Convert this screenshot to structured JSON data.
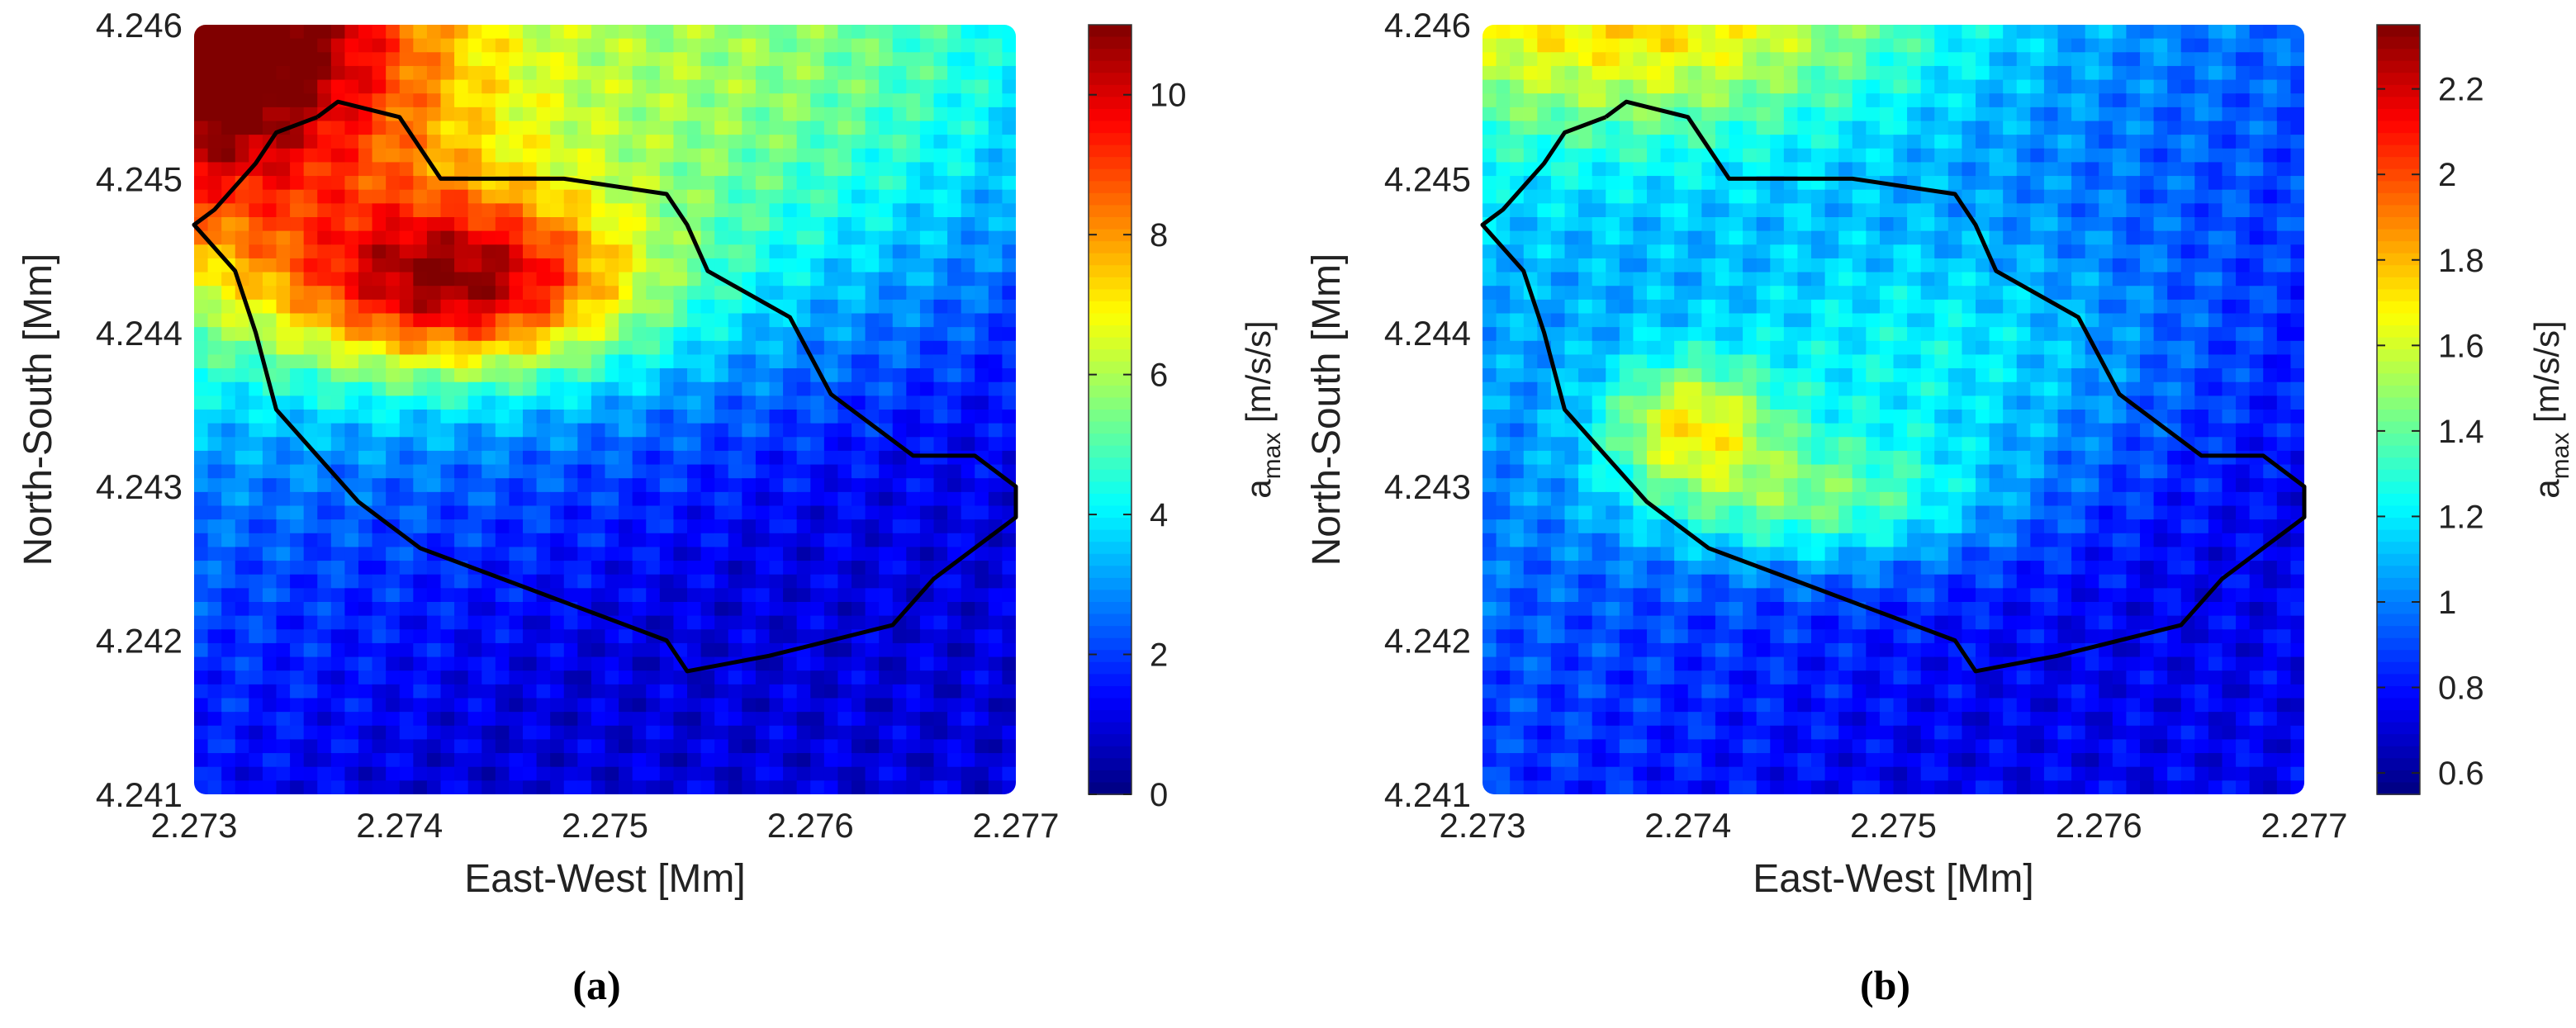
{
  "chart_data": [
    {
      "type": "heatmap",
      "panel_label": "(a)",
      "xlabel": "East-West [Mm]",
      "ylabel": "North-South [Mm]",
      "colorbar_label": "a",
      "colorbar_label_sub": "max",
      "colorbar_units": "[m/s/s]",
      "xlim": [
        2.273,
        2.277
      ],
      "ylim": [
        4.241,
        4.246
      ],
      "xticks": [
        "2.273",
        "2.274",
        "2.275",
        "2.276",
        "2.277"
      ],
      "yticks": [
        "4.241",
        "4.242",
        "4.243",
        "4.244",
        "4.245",
        "4.246"
      ],
      "colorbar_range": [
        0,
        11
      ],
      "colorbar_ticks": [
        "0",
        "2",
        "4",
        "6",
        "8",
        "10"
      ],
      "colormap": "jet",
      "field": {
        "background_level": 1.6,
        "hotspots": [
          {
            "x": 2.273,
            "y": 4.246,
            "sx": 0.0008,
            "sy": 0.0009,
            "value": 7.8
          },
          {
            "x": 2.2743,
            "y": 4.2443,
            "sx": 0.0006,
            "sy": 0.0004,
            "value": 5.8
          },
          {
            "x": 2.2745,
            "y": 4.2448,
            "sx": 0.002,
            "sy": 0.001,
            "value": 2.4
          },
          {
            "x": 2.276,
            "y": 4.246,
            "sx": 0.0012,
            "sy": 0.0008,
            "value": 2.0
          }
        ],
        "gradient": {
          "min": 0.6,
          "max": 4.0,
          "direction": "top-left-to-bottom-right"
        }
      },
      "boundary": [
        [
          2.2736,
          4.2454
        ],
        [
          2.2737,
          4.2455
        ],
        [
          2.274,
          4.2454
        ],
        [
          2.2742,
          4.245
        ],
        [
          2.2748,
          4.245
        ],
        [
          2.2753,
          4.2449
        ],
        [
          2.2754,
          4.2447
        ],
        [
          2.2755,
          4.2444
        ],
        [
          2.2759,
          4.2441
        ],
        [
          2.2761,
          4.2436
        ],
        [
          2.2765,
          4.2432
        ],
        [
          2.2768,
          4.2432
        ],
        [
          2.277,
          4.243
        ],
        [
          2.277,
          4.2428
        ],
        [
          2.2766,
          4.2424
        ],
        [
          2.2764,
          4.2421
        ],
        [
          2.2758,
          4.2419
        ],
        [
          2.2754,
          4.2418
        ],
        [
          2.2753,
          4.242
        ],
        [
          2.2749,
          4.2422
        ],
        [
          2.2745,
          4.2424
        ],
        [
          2.2741,
          4.2426
        ],
        [
          2.2738,
          4.2429
        ],
        [
          2.2736,
          4.2432
        ],
        [
          2.2734,
          4.2435
        ],
        [
          2.2733,
          4.244
        ],
        [
          2.2732,
          4.2444
        ],
        [
          2.273,
          4.2447
        ],
        [
          2.2731,
          4.2448
        ],
        [
          2.2733,
          4.2451
        ],
        [
          2.2734,
          4.2453
        ],
        [
          2.2736,
          4.2454
        ]
      ]
    },
    {
      "type": "heatmap",
      "panel_label": "(b)",
      "xlabel": "East-West [Mm]",
      "ylabel": "North-South [Mm]",
      "colorbar_label": "a",
      "colorbar_label_sub": "max",
      "colorbar_units": "[m/s/s]",
      "xlim": [
        2.273,
        2.277
      ],
      "ylim": [
        4.241,
        4.246
      ],
      "xticks": [
        "2.273",
        "2.274",
        "2.275",
        "2.276",
        "2.277"
      ],
      "yticks": [
        "4.241",
        "4.242",
        "4.243",
        "4.244",
        "4.245",
        "4.246"
      ],
      "colorbar_range": [
        0.55,
        2.35
      ],
      "colorbar_ticks": [
        "0.6",
        "0.8",
        "1",
        "1.2",
        "1.4",
        "1.6",
        "1.8",
        "2",
        "2.2"
      ],
      "colormap": "jet",
      "field": {
        "background_level": 0.95,
        "hotspots": [
          {
            "x": 2.2738,
            "y": 4.2461,
            "sx": 0.001,
            "sy": 0.0006,
            "value": 0.6
          },
          {
            "x": 2.274,
            "y": 4.2434,
            "sx": 0.0003,
            "sy": 0.0003,
            "value": 0.6
          },
          {
            "x": 2.2746,
            "y": 4.2429,
            "sx": 0.0006,
            "sy": 0.0003,
            "value": 0.45
          },
          {
            "x": 2.2752,
            "y": 4.2438,
            "sx": 0.0008,
            "sy": 0.0006,
            "value": 0.3
          }
        ],
        "gradient": {
          "min": 0.75,
          "max": 1.2,
          "direction": "top-left-to-bottom-right"
        }
      },
      "boundary": [
        [
          2.2736,
          4.2454
        ],
        [
          2.2737,
          4.2455
        ],
        [
          2.274,
          4.2454
        ],
        [
          2.2742,
          4.245
        ],
        [
          2.2748,
          4.245
        ],
        [
          2.2753,
          4.2449
        ],
        [
          2.2754,
          4.2447
        ],
        [
          2.2755,
          4.2444
        ],
        [
          2.2759,
          4.2441
        ],
        [
          2.2761,
          4.2436
        ],
        [
          2.2765,
          4.2432
        ],
        [
          2.2768,
          4.2432
        ],
        [
          2.277,
          4.243
        ],
        [
          2.277,
          4.2428
        ],
        [
          2.2766,
          4.2424
        ],
        [
          2.2764,
          4.2421
        ],
        [
          2.2758,
          4.2419
        ],
        [
          2.2754,
          4.2418
        ],
        [
          2.2753,
          4.242
        ],
        [
          2.2749,
          4.2422
        ],
        [
          2.2745,
          4.2424
        ],
        [
          2.2741,
          4.2426
        ],
        [
          2.2738,
          4.2429
        ],
        [
          2.2736,
          4.2432
        ],
        [
          2.2734,
          4.2435
        ],
        [
          2.2733,
          4.244
        ],
        [
          2.2732,
          4.2444
        ],
        [
          2.273,
          4.2447
        ],
        [
          2.2731,
          4.2448
        ],
        [
          2.2733,
          4.2451
        ],
        [
          2.2734,
          4.2453
        ],
        [
          2.2736,
          4.2454
        ]
      ]
    }
  ]
}
